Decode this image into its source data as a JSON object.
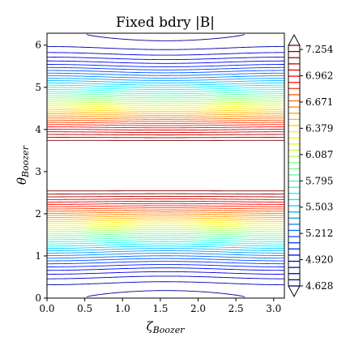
{
  "chart_data": {
    "type": "contour",
    "title": "Fixed bdry |B|",
    "xlabel": "ζ",
    "xlabel_sub": "Boozer",
    "ylabel": "θ",
    "ylabel_sub": "Boozer",
    "xlim": [
      0,
      3.1416
    ],
    "ylim": [
      0,
      6.2832
    ],
    "xticks": [
      "0.0",
      "0.5",
      "1.0",
      "1.5",
      "2.0",
      "2.5",
      "3.0"
    ],
    "yticks": [
      "0",
      "1",
      "2",
      "3",
      "4",
      "5",
      "6"
    ],
    "colormap": "jet",
    "field_model": "|B| approx 6.08 - 1.45 cos(theta) + small zeta-dependent ripple",
    "levels_min": 4.628,
    "levels_max": 7.3,
    "level_count": 40,
    "colorbar": {
      "ticks": [
        "4.628",
        "4.920",
        "5.212",
        "5.503",
        "5.795",
        "6.087",
        "6.379",
        "6.671",
        "6.962",
        "7.254"
      ],
      "extend": "both"
    }
  }
}
